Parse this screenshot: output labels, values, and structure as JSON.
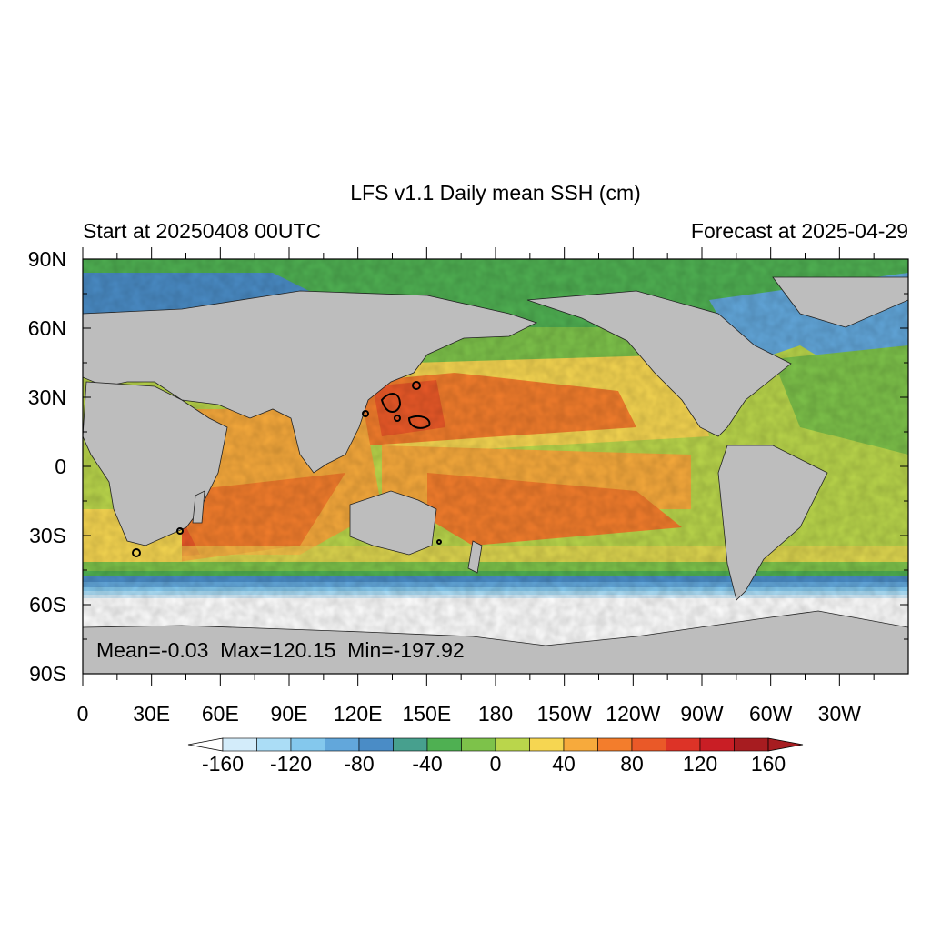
{
  "figure": {
    "title": "LFS v1.1 Daily mean SSH (cm)",
    "left_subtitle": "Start at 20250408 00UTC",
    "right_subtitle": "Forecast at 2025-04-29",
    "stats": {
      "text": "Mean=-0.03  Max=120.15  Min=-197.92",
      "mean": -0.03,
      "max": 120.15,
      "min": -197.92
    }
  },
  "map": {
    "projection": "cylindrical-equidistant",
    "lon_range": [
      0,
      360
    ],
    "lat_range": [
      -90,
      90
    ],
    "y_ticks": [
      "90N",
      "60N",
      "30N",
      "0",
      "30S",
      "60S",
      "90S"
    ],
    "y_tick_values": [
      90,
      60,
      30,
      0,
      -30,
      -60,
      -90
    ],
    "x_ticks": [
      "0",
      "30E",
      "60E",
      "90E",
      "120E",
      "150E",
      "180",
      "150W",
      "120W",
      "90W",
      "60W",
      "30W"
    ],
    "x_tick_values": [
      0,
      30,
      60,
      90,
      120,
      150,
      180,
      210,
      240,
      270,
      300,
      330
    ],
    "land_color": "#bdbdbd",
    "low_ice_color": "#ffffff",
    "contour_color": "#000000"
  },
  "colorbar": {
    "labels": [
      "-160",
      "-120",
      "-80",
      "-40",
      "0",
      "40",
      "80",
      "120",
      "160"
    ],
    "levels": [
      -160,
      -140,
      -120,
      -100,
      -80,
      -60,
      -40,
      -20,
      0,
      20,
      40,
      60,
      80,
      100,
      120,
      140,
      160
    ],
    "colors": [
      "#ffffff",
      "#d3ecfa",
      "#abddf6",
      "#84c8ed",
      "#62a7db",
      "#4a8cc6",
      "#47a08e",
      "#4fb052",
      "#7dc24a",
      "#bad64b",
      "#f6d651",
      "#f7aa3c",
      "#f37d2c",
      "#ea5928",
      "#dd3327",
      "#c91e25",
      "#a71c20"
    ]
  }
}
